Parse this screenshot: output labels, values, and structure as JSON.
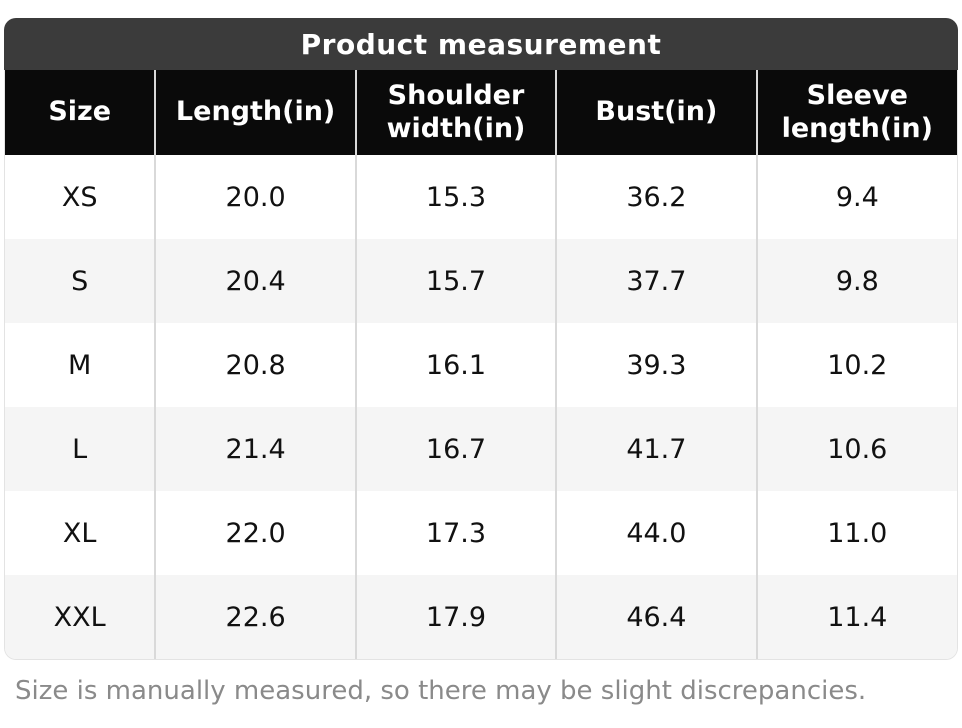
{
  "page": {
    "title": "Product measurement",
    "footnote": "Size is manually measured, so there may be slight discrepancies."
  },
  "chart_data": {
    "type": "table",
    "title": "Product measurement",
    "columns": [
      "Size",
      "Length(in)",
      "Shoulder width(in)",
      "Bust(in)",
      "Sleeve length(in)"
    ],
    "rows": [
      [
        "XS",
        "20.0",
        "15.3",
        "36.2",
        "9.4"
      ],
      [
        "S",
        "20.4",
        "15.7",
        "37.7",
        "9.8"
      ],
      [
        "M",
        "20.8",
        "16.1",
        "39.3",
        "10.2"
      ],
      [
        "L",
        "21.4",
        "16.7",
        "41.7",
        "10.6"
      ],
      [
        "XL",
        "22.0",
        "17.3",
        "44.0",
        "11.0"
      ],
      [
        "XXL",
        "22.6",
        "17.9",
        "46.4",
        "11.4"
      ]
    ],
    "note": "Size is manually measured, so there may be slight discrepancies.",
    "layout": {
      "first_column_width_pct": 15.8,
      "other_column_width_pct": 21.05,
      "row_striping": [
        "#ffffff",
        "#f5f5f5"
      ]
    }
  },
  "colors": {
    "title_bar_bg": "#3b3b3b",
    "header_bg": "#0a0a0a",
    "header_text": "#ffffff",
    "row_alt_bg": "#f5f5f5",
    "column_divider": "#d9d9d9",
    "footnote_text": "#8a8a8a"
  }
}
